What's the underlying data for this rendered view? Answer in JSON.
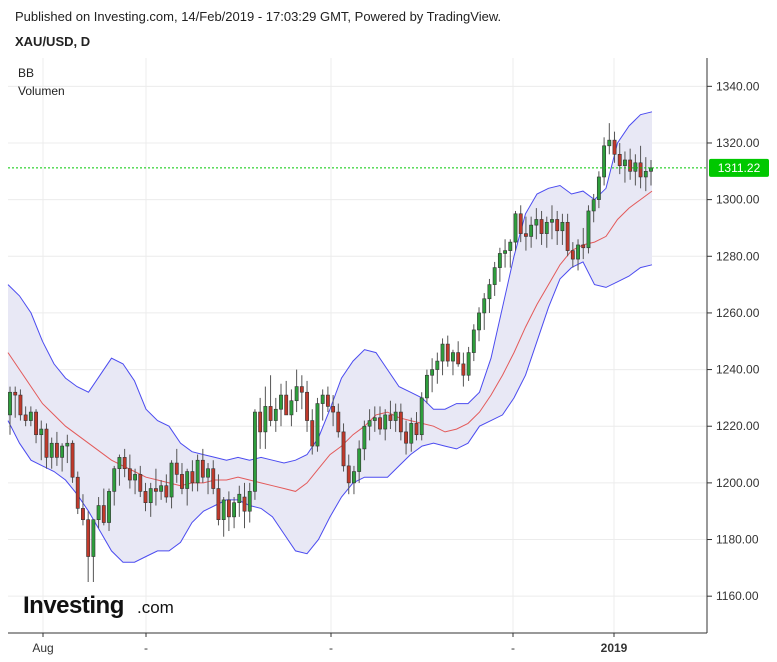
{
  "header": {
    "published": "Published on Investing.com, 14/Feb/2019 - 17:03:29 GMT, Powered by TradingView.",
    "symbol": "XAU/USD, D"
  },
  "indicators": [
    "BB",
    "Volumen"
  ],
  "logo": {
    "main": "Investing",
    "suffix": ".com"
  },
  "colors": {
    "up": "#2e9e3c",
    "down": "#c0392b",
    "band_line": "#4b4bf0",
    "band_fill": "#e8e8f5",
    "middle_line": "#e35a5a",
    "price_line": "#00c800",
    "grid": "#ececec"
  },
  "chart_data": {
    "type": "candlestick",
    "title": "XAU/USD, D",
    "ylim": [
      1147,
      1350
    ],
    "y_ticks": [
      1160,
      1180,
      1200,
      1220,
      1240,
      1260,
      1280,
      1300,
      1320,
      1340
    ],
    "y_tick_labels": [
      "1160.00",
      "1180.00",
      "1200.00",
      "1220.00",
      "1240.00",
      "1260.00",
      "1280.00",
      "1300.00",
      "1320.00",
      "1340.00"
    ],
    "x_tick_labels": [
      "Aug",
      "-",
      "-",
      "-",
      "2019",
      "-"
    ],
    "last_price": 1311.22,
    "last_price_label": "1311.22",
    "grid": true,
    "bollinger": {
      "upper": [
        1270,
        1266,
        1260,
        1250,
        1242,
        1237,
        1234,
        1232,
        1238,
        1244,
        1242,
        1236,
        1226,
        1222,
        1220,
        1214,
        1211,
        1210,
        1209,
        1208,
        1209,
        1208,
        1209,
        1208,
        1207,
        1208,
        1210,
        1216,
        1226,
        1237,
        1243,
        1247,
        1246,
        1240,
        1234,
        1232,
        1230,
        1226,
        1226,
        1228,
        1228,
        1232,
        1244,
        1262,
        1280,
        1295,
        1302,
        1304,
        1305,
        1302,
        1303,
        1300,
        1304,
        1320,
        1326,
        1330,
        1331
      ],
      "middle": [
        1246,
        1240,
        1234,
        1228,
        1224,
        1220,
        1217,
        1214,
        1211,
        1208,
        1206,
        1204,
        1202,
        1201,
        1200,
        1199,
        1200,
        1200,
        1201,
        1201,
        1202,
        1201,
        1200,
        1199,
        1198,
        1197,
        1200,
        1205,
        1210,
        1213,
        1217,
        1220,
        1224,
        1225,
        1223,
        1222,
        1221,
        1220,
        1218,
        1219,
        1221,
        1225,
        1231,
        1238,
        1246,
        1255,
        1263,
        1270,
        1277,
        1282,
        1284,
        1285,
        1287,
        1293,
        1297,
        1300,
        1303
      ],
      "lower": [
        1222,
        1214,
        1208,
        1206,
        1204,
        1201,
        1196,
        1190,
        1183,
        1176,
        1172,
        1172,
        1174,
        1176,
        1176,
        1179,
        1186,
        1190,
        1192,
        1194,
        1194,
        1192,
        1191,
        1188,
        1182,
        1176,
        1175,
        1180,
        1188,
        1195,
        1200,
        1202,
        1202,
        1202,
        1206,
        1210,
        1213,
        1214,
        1213,
        1212,
        1214,
        1220,
        1222,
        1224,
        1230,
        1238,
        1250,
        1262,
        1272,
        1276,
        1278,
        1270,
        1269,
        1271,
        1273,
        1276,
        1277
      ]
    },
    "candles": [
      {
        "o": 1224,
        "h": 1234,
        "l": 1217,
        "c": 1232
      },
      {
        "o": 1232,
        "h": 1234,
        "l": 1223,
        "c": 1231
      },
      {
        "o": 1231,
        "h": 1233,
        "l": 1222,
        "c": 1224
      },
      {
        "o": 1224,
        "h": 1227,
        "l": 1220,
        "c": 1222
      },
      {
        "o": 1222,
        "h": 1227,
        "l": 1220,
        "c": 1225
      },
      {
        "o": 1225,
        "h": 1226,
        "l": 1214,
        "c": 1217
      },
      {
        "o": 1217,
        "h": 1222,
        "l": 1208,
        "c": 1219
      },
      {
        "o": 1219,
        "h": 1221,
        "l": 1205,
        "c": 1209
      },
      {
        "o": 1209,
        "h": 1216,
        "l": 1205,
        "c": 1214
      },
      {
        "o": 1214,
        "h": 1218,
        "l": 1206,
        "c": 1209
      },
      {
        "o": 1209,
        "h": 1214,
        "l": 1204,
        "c": 1213
      },
      {
        "o": 1213,
        "h": 1217,
        "l": 1207,
        "c": 1214
      },
      {
        "o": 1214,
        "h": 1215,
        "l": 1200,
        "c": 1202
      },
      {
        "o": 1202,
        "h": 1204,
        "l": 1189,
        "c": 1191
      },
      {
        "o": 1191,
        "h": 1196,
        "l": 1185,
        "c": 1187
      },
      {
        "o": 1187,
        "h": 1190,
        "l": 1165,
        "c": 1174
      },
      {
        "o": 1174,
        "h": 1187,
        "l": 1165,
        "c": 1187
      },
      {
        "o": 1187,
        "h": 1195,
        "l": 1184,
        "c": 1192
      },
      {
        "o": 1192,
        "h": 1198,
        "l": 1185,
        "c": 1186
      },
      {
        "o": 1186,
        "h": 1198,
        "l": 1183,
        "c": 1197
      },
      {
        "o": 1197,
        "h": 1206,
        "l": 1192,
        "c": 1205
      },
      {
        "o": 1205,
        "h": 1210,
        "l": 1199,
        "c": 1209
      },
      {
        "o": 1209,
        "h": 1212,
        "l": 1202,
        "c": 1205
      },
      {
        "o": 1205,
        "h": 1210,
        "l": 1198,
        "c": 1201
      },
      {
        "o": 1201,
        "h": 1205,
        "l": 1196,
        "c": 1203
      },
      {
        "o": 1203,
        "h": 1206,
        "l": 1195,
        "c": 1197
      },
      {
        "o": 1197,
        "h": 1200,
        "l": 1190,
        "c": 1193
      },
      {
        "o": 1193,
        "h": 1200,
        "l": 1188,
        "c": 1198
      },
      {
        "o": 1198,
        "h": 1205,
        "l": 1192,
        "c": 1197
      },
      {
        "o": 1197,
        "h": 1201,
        "l": 1194,
        "c": 1199
      },
      {
        "o": 1199,
        "h": 1203,
        "l": 1193,
        "c": 1195
      },
      {
        "o": 1195,
        "h": 1208,
        "l": 1191,
        "c": 1207
      },
      {
        "o": 1207,
        "h": 1212,
        "l": 1200,
        "c": 1203
      },
      {
        "o": 1203,
        "h": 1207,
        "l": 1196,
        "c": 1198
      },
      {
        "o": 1198,
        "h": 1205,
        "l": 1192,
        "c": 1204
      },
      {
        "o": 1204,
        "h": 1208,
        "l": 1197,
        "c": 1200
      },
      {
        "o": 1200,
        "h": 1210,
        "l": 1197,
        "c": 1208
      },
      {
        "o": 1208,
        "h": 1212,
        "l": 1200,
        "c": 1202
      },
      {
        "o": 1202,
        "h": 1207,
        "l": 1196,
        "c": 1205
      },
      {
        "o": 1205,
        "h": 1208,
        "l": 1196,
        "c": 1198
      },
      {
        "o": 1198,
        "h": 1203,
        "l": 1185,
        "c": 1187
      },
      {
        "o": 1187,
        "h": 1195,
        "l": 1181,
        "c": 1194
      },
      {
        "o": 1194,
        "h": 1197,
        "l": 1183,
        "c": 1188
      },
      {
        "o": 1188,
        "h": 1195,
        "l": 1184,
        "c": 1193
      },
      {
        "o": 1193,
        "h": 1199,
        "l": 1188,
        "c": 1196
      },
      {
        "o": 1195,
        "h": 1200,
        "l": 1184,
        "c": 1190
      },
      {
        "o": 1190,
        "h": 1200,
        "l": 1186,
        "c": 1197
      },
      {
        "o": 1197,
        "h": 1226,
        "l": 1194,
        "c": 1225
      },
      {
        "o": 1225,
        "h": 1230,
        "l": 1212,
        "c": 1218
      },
      {
        "o": 1218,
        "h": 1234,
        "l": 1212,
        "c": 1227
      },
      {
        "o": 1227,
        "h": 1238,
        "l": 1220,
        "c": 1222
      },
      {
        "o": 1222,
        "h": 1230,
        "l": 1218,
        "c": 1226
      },
      {
        "o": 1226,
        "h": 1235,
        "l": 1220,
        "c": 1231
      },
      {
        "o": 1231,
        "h": 1236,
        "l": 1224,
        "c": 1224
      },
      {
        "o": 1224,
        "h": 1233,
        "l": 1220,
        "c": 1229
      },
      {
        "o": 1229,
        "h": 1240,
        "l": 1225,
        "c": 1234
      },
      {
        "o": 1234,
        "h": 1238,
        "l": 1226,
        "c": 1232
      },
      {
        "o": 1232,
        "h": 1236,
        "l": 1218,
        "c": 1222
      },
      {
        "o": 1222,
        "h": 1226,
        "l": 1210,
        "c": 1213
      },
      {
        "o": 1213,
        "h": 1230,
        "l": 1211,
        "c": 1228
      },
      {
        "o": 1228,
        "h": 1233,
        "l": 1222,
        "c": 1231
      },
      {
        "o": 1231,
        "h": 1234,
        "l": 1225,
        "c": 1227
      },
      {
        "o": 1227,
        "h": 1231,
        "l": 1220,
        "c": 1225
      },
      {
        "o": 1225,
        "h": 1228,
        "l": 1216,
        "c": 1218
      },
      {
        "o": 1218,
        "h": 1221,
        "l": 1204,
        "c": 1206
      },
      {
        "o": 1206,
        "h": 1210,
        "l": 1196,
        "c": 1200
      },
      {
        "o": 1200,
        "h": 1206,
        "l": 1196,
        "c": 1204
      },
      {
        "o": 1204,
        "h": 1215,
        "l": 1200,
        "c": 1212
      },
      {
        "o": 1212,
        "h": 1222,
        "l": 1208,
        "c": 1220
      },
      {
        "o": 1220,
        "h": 1226,
        "l": 1215,
        "c": 1222
      },
      {
        "o": 1222,
        "h": 1227,
        "l": 1218,
        "c": 1223
      },
      {
        "o": 1223,
        "h": 1227,
        "l": 1217,
        "c": 1219
      },
      {
        "o": 1219,
        "h": 1226,
        "l": 1215,
        "c": 1224
      },
      {
        "o": 1224,
        "h": 1229,
        "l": 1219,
        "c": 1222
      },
      {
        "o": 1222,
        "h": 1228,
        "l": 1218,
        "c": 1225
      },
      {
        "o": 1225,
        "h": 1228,
        "l": 1215,
        "c": 1218
      },
      {
        "o": 1218,
        "h": 1222,
        "l": 1210,
        "c": 1214
      },
      {
        "o": 1214,
        "h": 1223,
        "l": 1211,
        "c": 1221
      },
      {
        "o": 1221,
        "h": 1225,
        "l": 1215,
        "c": 1217
      },
      {
        "o": 1217,
        "h": 1232,
        "l": 1215,
        "c": 1230
      },
      {
        "o": 1230,
        "h": 1240,
        "l": 1228,
        "c": 1238
      },
      {
        "o": 1238,
        "h": 1244,
        "l": 1232,
        "c": 1240
      },
      {
        "o": 1240,
        "h": 1246,
        "l": 1235,
        "c": 1243
      },
      {
        "o": 1243,
        "h": 1251,
        "l": 1238,
        "c": 1249
      },
      {
        "o": 1249,
        "h": 1252,
        "l": 1241,
        "c": 1243
      },
      {
        "o": 1243,
        "h": 1247,
        "l": 1238,
        "c": 1246
      },
      {
        "o": 1246,
        "h": 1250,
        "l": 1241,
        "c": 1242
      },
      {
        "o": 1242,
        "h": 1246,
        "l": 1234,
        "c": 1238
      },
      {
        "o": 1238,
        "h": 1248,
        "l": 1236,
        "c": 1246
      },
      {
        "o": 1246,
        "h": 1256,
        "l": 1243,
        "c": 1254
      },
      {
        "o": 1254,
        "h": 1262,
        "l": 1250,
        "c": 1260
      },
      {
        "o": 1260,
        "h": 1267,
        "l": 1254,
        "c": 1265
      },
      {
        "o": 1265,
        "h": 1272,
        "l": 1260,
        "c": 1270
      },
      {
        "o": 1270,
        "h": 1278,
        "l": 1266,
        "c": 1276
      },
      {
        "o": 1276,
        "h": 1283,
        "l": 1271,
        "c": 1281
      },
      {
        "o": 1281,
        "h": 1286,
        "l": 1276,
        "c": 1282
      },
      {
        "o": 1282,
        "h": 1286,
        "l": 1276,
        "c": 1285
      },
      {
        "o": 1285,
        "h": 1296,
        "l": 1282,
        "c": 1295
      },
      {
        "o": 1295,
        "h": 1298,
        "l": 1285,
        "c": 1288
      },
      {
        "o": 1288,
        "h": 1294,
        "l": 1282,
        "c": 1287
      },
      {
        "o": 1287,
        "h": 1294,
        "l": 1283,
        "c": 1291
      },
      {
        "o": 1291,
        "h": 1297,
        "l": 1286,
        "c": 1293
      },
      {
        "o": 1293,
        "h": 1296,
        "l": 1284,
        "c": 1288
      },
      {
        "o": 1288,
        "h": 1294,
        "l": 1283,
        "c": 1292
      },
      {
        "o": 1292,
        "h": 1298,
        "l": 1286,
        "c": 1293
      },
      {
        "o": 1293,
        "h": 1296,
        "l": 1284,
        "c": 1289
      },
      {
        "o": 1289,
        "h": 1295,
        "l": 1284,
        "c": 1292
      },
      {
        "o": 1292,
        "h": 1295,
        "l": 1280,
        "c": 1282
      },
      {
        "o": 1282,
        "h": 1285,
        "l": 1276,
        "c": 1279
      },
      {
        "o": 1279,
        "h": 1286,
        "l": 1275,
        "c": 1284
      },
      {
        "o": 1284,
        "h": 1290,
        "l": 1279,
        "c": 1283
      },
      {
        "o": 1283,
        "h": 1298,
        "l": 1281,
        "c": 1296
      },
      {
        "o": 1296,
        "h": 1302,
        "l": 1292,
        "c": 1300
      },
      {
        "o": 1300,
        "h": 1310,
        "l": 1297,
        "c": 1308
      },
      {
        "o": 1308,
        "h": 1322,
        "l": 1305,
        "c": 1319
      },
      {
        "o": 1319,
        "h": 1327,
        "l": 1316,
        "c": 1321
      },
      {
        "o": 1321,
        "h": 1324,
        "l": 1313,
        "c": 1316
      },
      {
        "o": 1316,
        "h": 1320,
        "l": 1309,
        "c": 1312
      },
      {
        "o": 1312,
        "h": 1317,
        "l": 1306,
        "c": 1314
      },
      {
        "o": 1314,
        "h": 1318,
        "l": 1307,
        "c": 1310
      },
      {
        "o": 1310,
        "h": 1316,
        "l": 1305,
        "c": 1313
      },
      {
        "o": 1313,
        "h": 1319,
        "l": 1304,
        "c": 1308
      },
      {
        "o": 1308,
        "h": 1315,
        "l": 1303,
        "c": 1310
      },
      {
        "o": 1310,
        "h": 1314,
        "l": 1305,
        "c": 1311.22
      }
    ]
  }
}
